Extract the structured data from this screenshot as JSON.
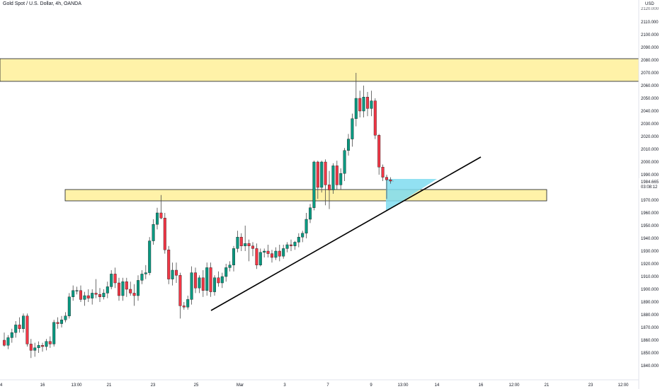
{
  "header": {
    "symbol_title": "Gold Spot / U.S. Dollar, 4h, OANDA",
    "currency": "USD"
  },
  "chart_data": {
    "type": "candlestick",
    "title": "Gold Spot / U.S. Dollar, 4h, OANDA",
    "ylabel": "USD",
    "ylim": [
      1836,
      2120
    ],
    "y_ticks": [
      1840,
      1850,
      1860,
      1870,
      1880,
      1890,
      1900,
      1910,
      1920,
      1930,
      1940,
      1950,
      1960,
      1970,
      1980,
      1990,
      2000,
      2010,
      2020,
      2030,
      2040,
      2050,
      2060,
      2070,
      2080,
      2090,
      2100,
      2110
    ],
    "x_ticks": [
      "4",
      "16",
      "13:00",
      "21",
      "23",
      "25",
      "Mar",
      "3",
      "7",
      "9",
      "13:00",
      "14",
      "16",
      "12:00",
      "21",
      "23",
      "12:00"
    ],
    "price_label": {
      "price": "1984.665",
      "countdown": "03:08:12",
      "color": "#d1212a"
    },
    "candles": [
      {
        "o": 1860,
        "h": 1866,
        "l": 1855,
        "c": 1856
      },
      {
        "o": 1856,
        "h": 1864,
        "l": 1853,
        "c": 1862
      },
      {
        "o": 1862,
        "h": 1869,
        "l": 1858,
        "c": 1866
      },
      {
        "o": 1866,
        "h": 1875,
        "l": 1862,
        "c": 1872
      },
      {
        "o": 1872,
        "h": 1878,
        "l": 1866,
        "c": 1869
      },
      {
        "o": 1869,
        "h": 1881,
        "l": 1866,
        "c": 1879
      },
      {
        "o": 1879,
        "h": 1881,
        "l": 1855,
        "c": 1857
      },
      {
        "o": 1857,
        "h": 1861,
        "l": 1846,
        "c": 1852
      },
      {
        "o": 1852,
        "h": 1858,
        "l": 1847,
        "c": 1854
      },
      {
        "o": 1854,
        "h": 1859,
        "l": 1850,
        "c": 1856
      },
      {
        "o": 1856,
        "h": 1858,
        "l": 1851,
        "c": 1855
      },
      {
        "o": 1855,
        "h": 1861,
        "l": 1852,
        "c": 1859
      },
      {
        "o": 1859,
        "h": 1863,
        "l": 1854,
        "c": 1857
      },
      {
        "o": 1857,
        "h": 1876,
        "l": 1855,
        "c": 1874
      },
      {
        "o": 1874,
        "h": 1878,
        "l": 1869,
        "c": 1873
      },
      {
        "o": 1873,
        "h": 1879,
        "l": 1870,
        "c": 1876
      },
      {
        "o": 1876,
        "h": 1882,
        "l": 1874,
        "c": 1879
      },
      {
        "o": 1879,
        "h": 1897,
        "l": 1877,
        "c": 1894
      },
      {
        "o": 1894,
        "h": 1903,
        "l": 1891,
        "c": 1899
      },
      {
        "o": 1899,
        "h": 1902,
        "l": 1896,
        "c": 1899
      },
      {
        "o": 1899,
        "h": 1903,
        "l": 1890,
        "c": 1892
      },
      {
        "o": 1892,
        "h": 1898,
        "l": 1887,
        "c": 1895
      },
      {
        "o": 1895,
        "h": 1900,
        "l": 1890,
        "c": 1893
      },
      {
        "o": 1893,
        "h": 1900,
        "l": 1888,
        "c": 1897
      },
      {
        "o": 1897,
        "h": 1908,
        "l": 1893,
        "c": 1896
      },
      {
        "o": 1896,
        "h": 1901,
        "l": 1890,
        "c": 1894
      },
      {
        "o": 1894,
        "h": 1900,
        "l": 1892,
        "c": 1897
      },
      {
        "o": 1897,
        "h": 1906,
        "l": 1893,
        "c": 1902
      },
      {
        "o": 1902,
        "h": 1915,
        "l": 1900,
        "c": 1912
      },
      {
        "o": 1912,
        "h": 1917,
        "l": 1901,
        "c": 1905
      },
      {
        "o": 1905,
        "h": 1909,
        "l": 1891,
        "c": 1895
      },
      {
        "o": 1895,
        "h": 1909,
        "l": 1891,
        "c": 1906
      },
      {
        "o": 1906,
        "h": 1909,
        "l": 1894,
        "c": 1900
      },
      {
        "o": 1900,
        "h": 1906,
        "l": 1895,
        "c": 1897
      },
      {
        "o": 1897,
        "h": 1904,
        "l": 1887,
        "c": 1895
      },
      {
        "o": 1895,
        "h": 1911,
        "l": 1891,
        "c": 1907
      },
      {
        "o": 1907,
        "h": 1915,
        "l": 1904,
        "c": 1912
      },
      {
        "o": 1912,
        "h": 1919,
        "l": 1908,
        "c": 1913
      },
      {
        "o": 1913,
        "h": 1941,
        "l": 1911,
        "c": 1938
      },
      {
        "o": 1938,
        "h": 1955,
        "l": 1935,
        "c": 1951
      },
      {
        "o": 1951,
        "h": 1964,
        "l": 1947,
        "c": 1960
      },
      {
        "o": 1960,
        "h": 1974,
        "l": 1955,
        "c": 1956
      },
      {
        "o": 1956,
        "h": 1960,
        "l": 1928,
        "c": 1931
      },
      {
        "o": 1931,
        "h": 1934,
        "l": 1904,
        "c": 1908
      },
      {
        "o": 1908,
        "h": 1921,
        "l": 1903,
        "c": 1915
      },
      {
        "o": 1915,
        "h": 1921,
        "l": 1905,
        "c": 1911
      },
      {
        "o": 1911,
        "h": 1913,
        "l": 1877,
        "c": 1887
      },
      {
        "o": 1887,
        "h": 1890,
        "l": 1884,
        "c": 1886
      },
      {
        "o": 1886,
        "h": 1895,
        "l": 1884,
        "c": 1892
      },
      {
        "o": 1892,
        "h": 1918,
        "l": 1888,
        "c": 1913
      },
      {
        "o": 1913,
        "h": 1917,
        "l": 1897,
        "c": 1901
      },
      {
        "o": 1901,
        "h": 1911,
        "l": 1897,
        "c": 1909
      },
      {
        "o": 1909,
        "h": 1915,
        "l": 1894,
        "c": 1899
      },
      {
        "o": 1899,
        "h": 1921,
        "l": 1895,
        "c": 1917
      },
      {
        "o": 1917,
        "h": 1921,
        "l": 1894,
        "c": 1898
      },
      {
        "o": 1898,
        "h": 1911,
        "l": 1895,
        "c": 1909
      },
      {
        "o": 1909,
        "h": 1914,
        "l": 1902,
        "c": 1905
      },
      {
        "o": 1905,
        "h": 1913,
        "l": 1901,
        "c": 1910
      },
      {
        "o": 1910,
        "h": 1920,
        "l": 1906,
        "c": 1917
      },
      {
        "o": 1917,
        "h": 1922,
        "l": 1914,
        "c": 1919
      },
      {
        "o": 1919,
        "h": 1934,
        "l": 1914,
        "c": 1932
      },
      {
        "o": 1932,
        "h": 1946,
        "l": 1929,
        "c": 1941
      },
      {
        "o": 1941,
        "h": 1944,
        "l": 1930,
        "c": 1934
      },
      {
        "o": 1934,
        "h": 1950,
        "l": 1930,
        "c": 1936
      },
      {
        "o": 1936,
        "h": 1939,
        "l": 1922,
        "c": 1934
      },
      {
        "o": 1934,
        "h": 1937,
        "l": 1926,
        "c": 1932
      },
      {
        "o": 1932,
        "h": 1936,
        "l": 1916,
        "c": 1919
      },
      {
        "o": 1919,
        "h": 1932,
        "l": 1918,
        "c": 1929
      },
      {
        "o": 1929,
        "h": 1932,
        "l": 1925,
        "c": 1930
      },
      {
        "o": 1930,
        "h": 1935,
        "l": 1925,
        "c": 1928
      },
      {
        "o": 1928,
        "h": 1931,
        "l": 1921,
        "c": 1925
      },
      {
        "o": 1925,
        "h": 1933,
        "l": 1923,
        "c": 1930
      },
      {
        "o": 1930,
        "h": 1935,
        "l": 1922,
        "c": 1926
      },
      {
        "o": 1926,
        "h": 1935,
        "l": 1924,
        "c": 1932
      },
      {
        "o": 1932,
        "h": 1937,
        "l": 1929,
        "c": 1935
      },
      {
        "o": 1935,
        "h": 1939,
        "l": 1930,
        "c": 1934
      },
      {
        "o": 1934,
        "h": 1938,
        "l": 1931,
        "c": 1937
      },
      {
        "o": 1937,
        "h": 1944,
        "l": 1933,
        "c": 1941
      },
      {
        "o": 1941,
        "h": 1946,
        "l": 1937,
        "c": 1944
      },
      {
        "o": 1944,
        "h": 1960,
        "l": 1940,
        "c": 1955
      },
      {
        "o": 1955,
        "h": 1967,
        "l": 1952,
        "c": 1964
      },
      {
        "o": 1964,
        "h": 2001,
        "l": 1962,
        "c": 2000
      },
      {
        "o": 2000,
        "h": 2001,
        "l": 1971,
        "c": 1980
      },
      {
        "o": 1980,
        "h": 2001,
        "l": 1976,
        "c": 2000
      },
      {
        "o": 2000,
        "h": 2002,
        "l": 1966,
        "c": 1982
      },
      {
        "o": 1982,
        "h": 1993,
        "l": 1963,
        "c": 1978
      },
      {
        "o": 1978,
        "h": 1999,
        "l": 1975,
        "c": 1997
      },
      {
        "o": 1997,
        "h": 2001,
        "l": 1978,
        "c": 1982
      },
      {
        "o": 1982,
        "h": 1995,
        "l": 1978,
        "c": 1991
      },
      {
        "o": 1991,
        "h": 2011,
        "l": 1985,
        "c": 2009
      },
      {
        "o": 2009,
        "h": 2022,
        "l": 2005,
        "c": 2018
      },
      {
        "o": 2018,
        "h": 2038,
        "l": 2012,
        "c": 2034
      },
      {
        "o": 2034,
        "h": 2070,
        "l": 2028,
        "c": 2050
      },
      {
        "o": 2050,
        "h": 2056,
        "l": 2035,
        "c": 2040
      },
      {
        "o": 2040,
        "h": 2060,
        "l": 2035,
        "c": 2051
      },
      {
        "o": 2051,
        "h": 2055,
        "l": 2036,
        "c": 2042
      },
      {
        "o": 2042,
        "h": 2056,
        "l": 2036,
        "c": 2048
      },
      {
        "o": 2048,
        "h": 2050,
        "l": 2018,
        "c": 2021
      },
      {
        "o": 2021,
        "h": 2022,
        "l": 1990,
        "c": 1996
      },
      {
        "o": 1996,
        "h": 1998,
        "l": 1985,
        "c": 1988
      },
      {
        "o": 1988,
        "h": 1990,
        "l": 1971,
        "c": 1986
      },
      {
        "o": 1986,
        "h": 1988,
        "l": 1983,
        "c": 1985
      }
    ],
    "colors": {
      "up": "#089981",
      "down": "#f23645",
      "upWick": "#5c5c5c",
      "zone": "#fff2a8",
      "zoneBorder": "#131722",
      "projection": "#7fdcf0"
    }
  }
}
